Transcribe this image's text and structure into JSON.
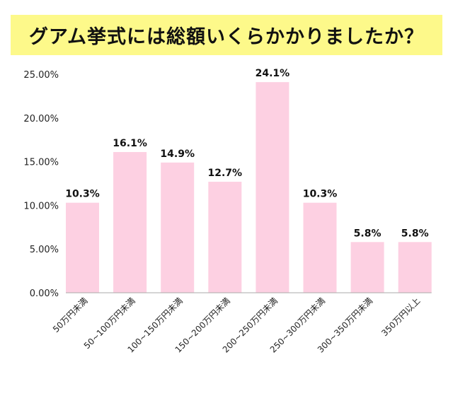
{
  "chart_data": {
    "type": "bar",
    "title": "グアム挙式には総額いくらかかりましたか？",
    "categories": [
      "50万円未満",
      "50~100万円未満",
      "100~150万円未満",
      "150~200万円未満",
      "200~250万円未満",
      "250~300万円未満",
      "300~350万円未満",
      "350万円以上"
    ],
    "values": [
      10.3,
      16.1,
      14.9,
      12.7,
      24.1,
      10.3,
      5.8,
      5.8
    ],
    "data_labels": [
      "10.3%",
      "16.1%",
      "14.9%",
      "12.7%",
      "24.1%",
      "10.3%",
      "5.8%",
      "5.8%"
    ],
    "yticks": [
      "0.00%",
      "5.00%",
      "10.00%",
      "15.00%",
      "20.00%",
      "25.00%"
    ],
    "ylim": [
      0,
      25
    ],
    "xlabel": "",
    "ylabel": "",
    "grid": false,
    "colors": {
      "bar": "#fdd0e2",
      "banner": "#fdf98a"
    }
  }
}
